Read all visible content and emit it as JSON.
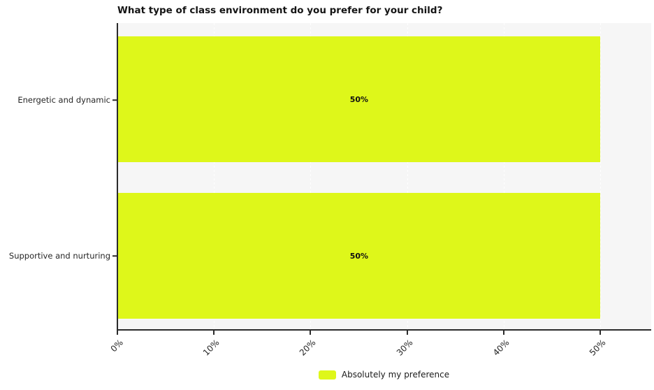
{
  "title": "What type of class environment do you prefer for your child?",
  "legend": {
    "label": "Absolutely my preference"
  },
  "colors": {
    "bar": "#def71a",
    "plot_background": "#f6f6f6",
    "axis": "#2b2b2b",
    "gridline": "#ffffff"
  },
  "chart_data": {
    "type": "bar",
    "orientation": "horizontal",
    "title": "What type of class environment do you prefer for your child?",
    "categories": [
      "Energetic and dynamic",
      "Supportive and nurturing"
    ],
    "series": [
      {
        "name": "Absolutely my preference",
        "values": [
          50,
          50
        ]
      }
    ],
    "data_labels": [
      "50%",
      "50%"
    ],
    "x_tick_labels": [
      "0%",
      "10%",
      "20%",
      "30%",
      "40%",
      "50%"
    ],
    "x_tick_values": [
      0,
      10,
      20,
      30,
      40,
      50
    ],
    "xlabel": "",
    "ylabel": "",
    "xlim": [
      0,
      55.3
    ],
    "grid": true,
    "grid_style": "dashed-white-vertical",
    "legend_position": "bottom-center",
    "bar_color": "#def71a",
    "data_label_format": "percent"
  }
}
